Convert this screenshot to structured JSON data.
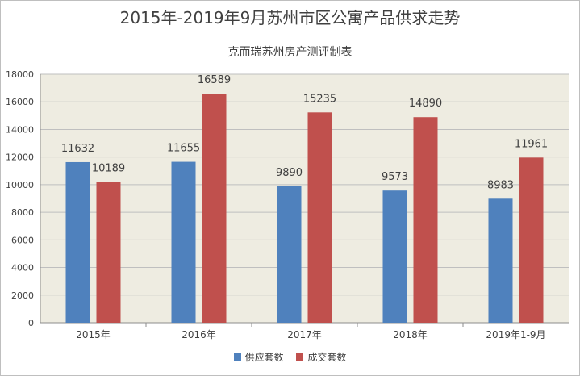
{
  "chart_data": {
    "type": "bar",
    "title": "2015年-2019年9月苏州市区公寓产品供求走势",
    "subtitle": "克而瑞苏州房产测评制表",
    "categories": [
      "2015年",
      "2016年",
      "2017年",
      "2018年",
      "2019年1-9月"
    ],
    "series": [
      {
        "name": "供应套数",
        "color": "#4f81bd",
        "values": [
          11632,
          11655,
          9890,
          9573,
          8983
        ]
      },
      {
        "name": "成交套数",
        "color": "#c0504d",
        "values": [
          10189,
          16589,
          15235,
          14890,
          11961
        ]
      }
    ],
    "ylim": [
      0,
      18000
    ],
    "yticks": [
      "0",
      "2000",
      "4000",
      "6000",
      "8000",
      "10000",
      "12000",
      "14000",
      "16000",
      "18000"
    ],
    "grid": true,
    "plot_background": "#eeece1",
    "legend_position": "bottom"
  }
}
